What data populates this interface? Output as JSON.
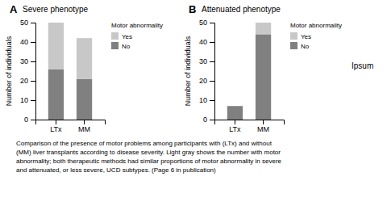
{
  "chart_data": [
    {
      "type": "bar",
      "title": "Severe phenotype",
      "annotations": [
        "A"
      ],
      "categories": [
        "LTx",
        "MM"
      ],
      "series": [
        {
          "name": "No",
          "color": "#808080",
          "values": [
            26,
            21
          ]
        },
        {
          "name": "Yes",
          "color": "#c8c8c8",
          "values": [
            24,
            21
          ]
        }
      ],
      "stacked": true,
      "ylabel": "Number of individuals",
      "ylim": [
        0,
        50
      ],
      "yticks": [
        0,
        10,
        20,
        30,
        40,
        50
      ],
      "legend": "right",
      "legend_title": "Motor abnormality"
    },
    {
      "type": "bar",
      "title": "Attenuated phenotype",
      "annotations": [
        "B",
        "Ipsum",
        "Comparison of the presence of motor problems among participants with (LTx) and without\n(MM) liver transplants according to disease severity. Light gray shows the number with motor\nabnormality; both therapeutic methods had similar proportions of motor abnormality in severe\nand attenuated, or less severe, UCD subtypes. (Page 6 in publication)"
      ],
      "categories": [
        "LTx",
        "MM"
      ],
      "series": [
        {
          "name": "No",
          "color": "#808080",
          "values": [
            7,
            44
          ]
        },
        {
          "name": "Yes",
          "color": "#c8c8c8",
          "values": [
            0,
            6
          ]
        }
      ],
      "stacked": true,
      "ylabel": "Number of individuals",
      "ylim": [
        0,
        50
      ],
      "yticks": [
        0,
        10,
        20,
        30,
        40,
        50
      ],
      "legend": "right",
      "legend_title": "Motor abnormality"
    }
  ]
}
